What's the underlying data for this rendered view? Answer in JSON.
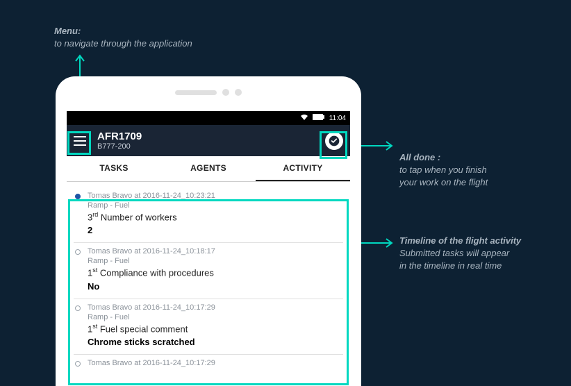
{
  "annotations": {
    "menu": {
      "title": "Menu:",
      "desc": "to navigate through the application"
    },
    "alldone": {
      "title": "All done :",
      "desc1": "to tap when you finish",
      "desc2": "your work on the flight"
    },
    "timeline": {
      "title": "Timeline of the flight activity",
      "desc1": "Submitted tasks will appear",
      "desc2": "in the timeline in real time"
    }
  },
  "statusbar": {
    "time": "11:04"
  },
  "appbar": {
    "title": "AFR1709",
    "subtitle": "B777-200"
  },
  "tabs": {
    "t0": "TASKS",
    "t1": "AGENTS",
    "t2": "ACTIVITY"
  },
  "timeline_entries": [
    {
      "meta": "Tomas Bravo at 2016-11-24_10:23:21",
      "cat": "Ramp - Fuel",
      "ord": "3",
      "ord_suf": "rd",
      "task": " Number of workers",
      "val": "2"
    },
    {
      "meta": "Tomas Bravo at 2016-11-24_10:18:17",
      "cat": "Ramp - Fuel",
      "ord": "1",
      "ord_suf": "st",
      "task": " Compliance with procedures",
      "val": "No"
    },
    {
      "meta": "Tomas Bravo at 2016-11-24_10:17:29",
      "cat": "Ramp - Fuel",
      "ord": "1",
      "ord_suf": "st",
      "task": " Fuel special comment",
      "val": "Chrome sticks scratched"
    },
    {
      "meta": "Tomas Bravo at 2016-11-24_10:17:29",
      "cat": "",
      "ord": "",
      "ord_suf": "",
      "task": "",
      "val": ""
    }
  ],
  "colors": {
    "accent": "#00d8c0",
    "bg": "#0d2133",
    "appbar": "#1a2535"
  }
}
